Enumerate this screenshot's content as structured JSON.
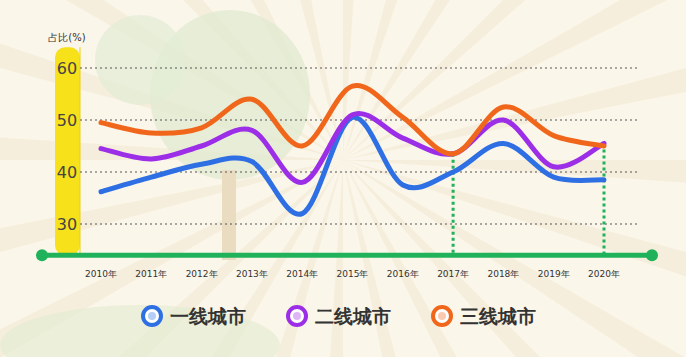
{
  "chart_data": {
    "type": "line",
    "y_label": "占比(%)",
    "categories": [
      "2010年",
      "2011年",
      "2012年",
      "2013年",
      "2014年",
      "2015年",
      "2016年",
      "2017年",
      "2018年",
      "2019年",
      "2020年"
    ],
    "series": [
      {
        "name": "一线城市",
        "color": "#2f6fe4",
        "values": [
          36.2,
          39,
          41.5,
          42,
          32,
          50.5,
          37.5,
          40,
          45.5,
          39,
          38.5
        ]
      },
      {
        "name": "二线城市",
        "color": "#9b2ee6",
        "values": [
          44.5,
          42.5,
          45,
          48,
          38,
          51,
          46.5,
          43.5,
          50,
          41,
          45.5
        ]
      },
      {
        "name": "三线城市",
        "color": "#f0671c",
        "values": [
          49.5,
          47.5,
          48.5,
          54,
          45,
          56.5,
          50.5,
          43.5,
          52.5,
          47,
          45
        ]
      }
    ],
    "ylim": [
      24,
      64
    ],
    "yticks": [
      30,
      40,
      50,
      60
    ],
    "grid": true,
    "legend": "bottom",
    "line_style": "solid"
  }
}
